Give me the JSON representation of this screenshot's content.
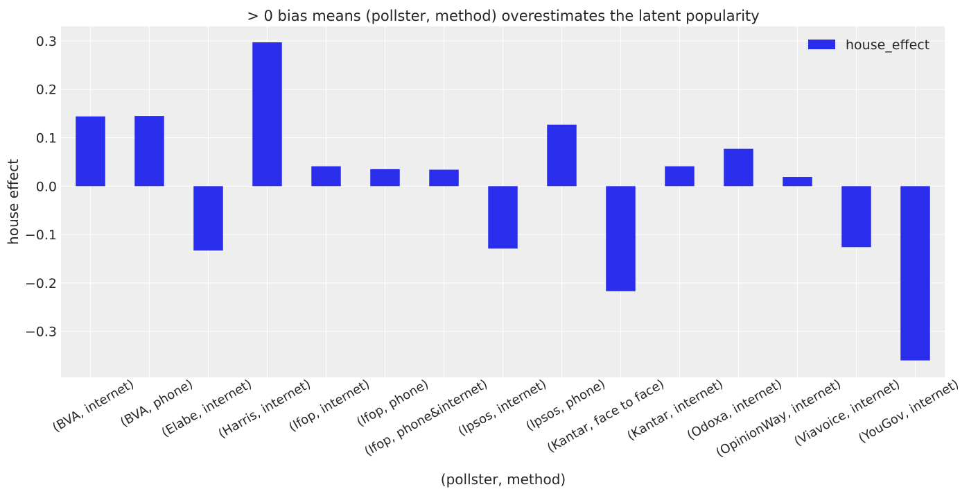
{
  "chart_data": {
    "type": "bar",
    "title": "> 0 bias means (pollster, method) overestimates the latent popularity",
    "xlabel": "(pollster, method)",
    "ylabel": "house effect",
    "categories": [
      "(BVA, internet)",
      "(BVA, phone)",
      "(Elabe, internet)",
      "(Harris, internet)",
      "(Ifop, internet)",
      "(Ifop, phone)",
      "(Ifop, phone&internet)",
      "(Ipsos, internet)",
      "(Ipsos, phone)",
      "(Kantar, face to face)",
      "(Kantar, internet)",
      "(Odoxa, internet)",
      "(OpinionWay, internet)",
      "(Viavoice, internet)",
      "(YouGov, internet)"
    ],
    "series": [
      {
        "name": "house_effect",
        "color": "#2a2eec",
        "values": [
          0.144,
          0.145,
          -0.133,
          0.297,
          0.041,
          0.035,
          0.034,
          -0.129,
          0.127,
          -0.217,
          0.041,
          0.077,
          0.019,
          -0.126,
          -0.36
        ]
      }
    ],
    "yticks": [
      -0.3,
      -0.2,
      -0.1,
      0.0,
      0.1,
      0.2,
      0.3
    ],
    "ytick_labels": [
      "−0.3",
      "−0.2",
      "−0.1",
      "0.0",
      "0.1",
      "0.2",
      "0.3"
    ],
    "ylim": [
      -0.395,
      0.33
    ],
    "grid": true,
    "legend_position": "top-right",
    "background_color": "#eeeeee",
    "grid_color": "#ffffff"
  }
}
